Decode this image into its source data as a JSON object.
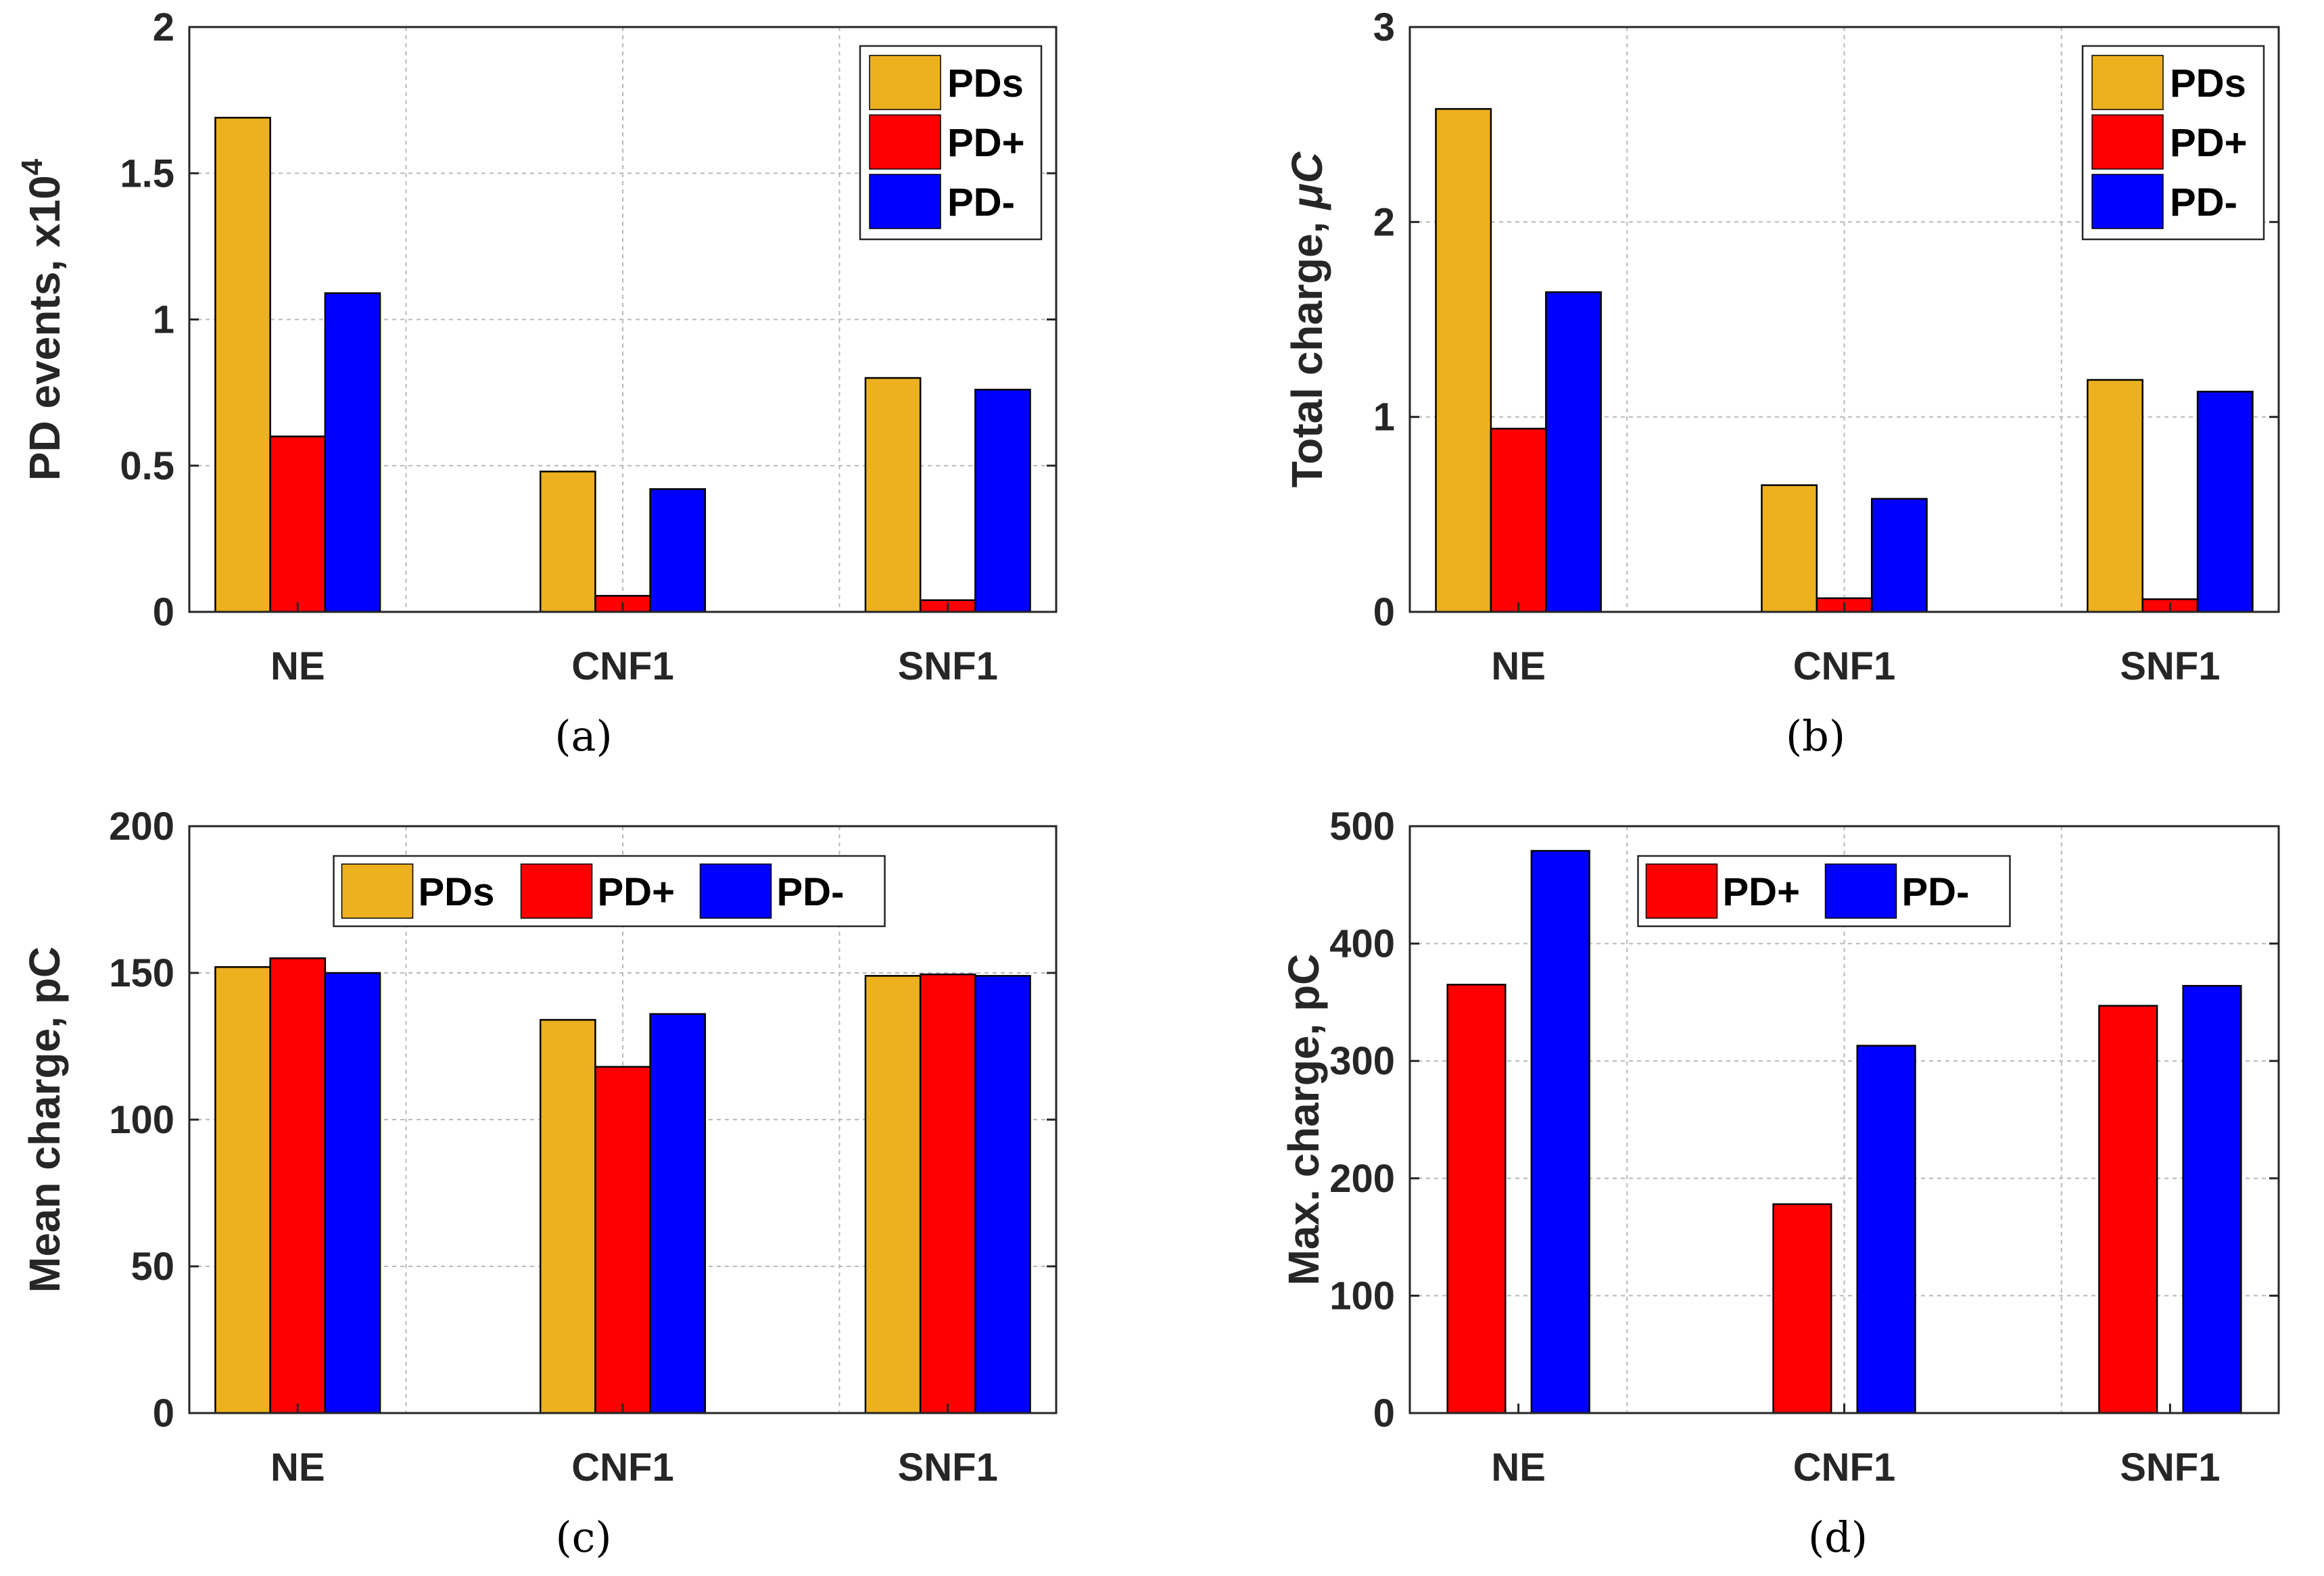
{
  "colors": {
    "PDs": "#EDB120",
    "PD+": "#FF0000",
    "PD-": "#0000FF"
  },
  "chart_data": [
    {
      "type": "bar",
      "caption": "(a)",
      "ylabel": "PD events, x10",
      "ylabel_sup": "4",
      "categories": [
        "NE",
        "CNF1",
        "SNF1"
      ],
      "ylim": [
        0,
        2
      ],
      "yticks": [
        0,
        0.5,
        1,
        1.5,
        2
      ],
      "ytick_labels": [
        "0",
        "0.5",
        "1",
        "1.5",
        "2"
      ],
      "grid": true,
      "legend": {
        "entries": [
          "PDs",
          "PD+",
          "PD-"
        ],
        "placement": "top-right",
        "orientation": "vertical"
      },
      "series": [
        {
          "name": "PDs",
          "values": [
            1.69,
            0.48,
            0.8
          ]
        },
        {
          "name": "PD+",
          "values": [
            0.6,
            0.055,
            0.04
          ]
        },
        {
          "name": "PD-",
          "values": [
            1.09,
            0.42,
            0.76
          ]
        }
      ]
    },
    {
      "type": "bar",
      "caption": "(b)",
      "ylabel": "Total charge,",
      "ylabel_unit": "μC",
      "categories": [
        "NE",
        "CNF1",
        "SNF1"
      ],
      "ylim": [
        0,
        3
      ],
      "yticks": [
        0,
        1,
        2,
        3
      ],
      "ytick_labels": [
        "0",
        "1",
        "2",
        "3"
      ],
      "grid": true,
      "legend": {
        "entries": [
          "PDs",
          "PD+",
          "PD-"
        ],
        "placement": "top-right",
        "orientation": "vertical"
      },
      "series": [
        {
          "name": "PDs",
          "values": [
            2.58,
            0.65,
            1.19
          ]
        },
        {
          "name": "PD+",
          "values": [
            0.94,
            0.07,
            0.065
          ]
        },
        {
          "name": "PD-",
          "values": [
            1.64,
            0.58,
            1.13
          ]
        }
      ]
    },
    {
      "type": "bar",
      "caption": "(c)",
      "ylabel": "Mean charge, pC",
      "categories": [
        "NE",
        "CNF1",
        "SNF1"
      ],
      "ylim": [
        0,
        200
      ],
      "yticks": [
        0,
        50,
        100,
        150,
        200
      ],
      "ytick_labels": [
        "0",
        "50",
        "100",
        "150",
        "200"
      ],
      "grid": true,
      "legend": {
        "entries": [
          "PDs",
          "PD+",
          "PD-"
        ],
        "placement": "top-center",
        "orientation": "horizontal"
      },
      "series": [
        {
          "name": "PDs",
          "values": [
            152,
            134,
            149
          ]
        },
        {
          "name": "PD+",
          "values": [
            155,
            118,
            149.5
          ]
        },
        {
          "name": "PD-",
          "values": [
            150,
            136,
            149
          ]
        }
      ]
    },
    {
      "type": "bar",
      "caption": "(d)",
      "ylabel": "Max. charge, pC",
      "categories": [
        "NE",
        "CNF1",
        "SNF1"
      ],
      "ylim": [
        0,
        500
      ],
      "yticks": [
        0,
        100,
        200,
        300,
        400,
        500
      ],
      "ytick_labels": [
        "0",
        "100",
        "200",
        "300",
        "400",
        "500"
      ],
      "grid": true,
      "legend": {
        "entries": [
          "PD+",
          "PD-"
        ],
        "placement": "top-center",
        "orientation": "horizontal"
      },
      "series": [
        {
          "name": "PD+",
          "values": [
            365,
            178,
            347
          ]
        },
        {
          "name": "PD-",
          "values": [
            479,
            313,
            364
          ]
        }
      ]
    }
  ]
}
